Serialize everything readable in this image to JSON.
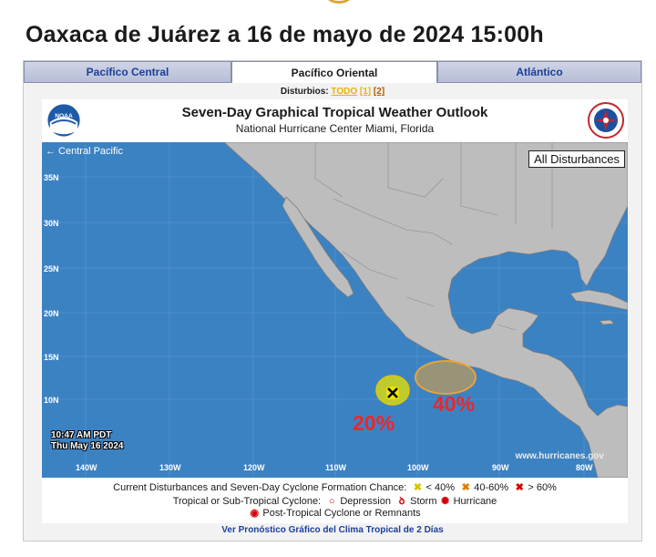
{
  "headline": "Oaxaca de Juárez a  16 de mayo de 2024  15:00h",
  "tabs": [
    {
      "label": "Pacífico Central",
      "active": false
    },
    {
      "label": "Pacífico Oriental",
      "active": true
    },
    {
      "label": "Atlántico",
      "active": false
    }
  ],
  "subnav": {
    "prefix": "Disturbios:",
    "all": "TODO",
    "d1": "[1]",
    "d2": "[2]"
  },
  "product": {
    "title": "Seven-Day Graphical Tropical Weather Outlook",
    "subtitle": "National Hurricane Center  Miami, Florida",
    "left_logo": "noaa-logo",
    "right_logo": "nws-logo"
  },
  "map": {
    "central_pacific_link": "← Central Pacific",
    "all_disturbances_label": "All Disturbances",
    "lat_labels": [
      "35N",
      "30N",
      "25N",
      "20N",
      "15N",
      "10N"
    ],
    "lon_labels": [
      "140W",
      "130W",
      "120W",
      "110W",
      "100W",
      "90W",
      "80W"
    ],
    "issued_time": "10:47 AM PDT",
    "issued_date": "Thu May 16 2024",
    "credit": "www.hurricanes.gov",
    "area1_chance": "20%",
    "area2_chance": "40%",
    "colors": {
      "ocean": "#3b82c3",
      "land": "#bdbdbd",
      "low": "#e9e300",
      "medium": "#e8a33a",
      "annotation": "#e8282b"
    }
  },
  "legend": {
    "row1_label": "Current Disturbances and Seven-Day Cyclone Formation Chance:",
    "low": "< 40%",
    "mid": "40-60%",
    "high": "> 60%",
    "row2_label": "Tropical or Sub-Tropical Cyclone:",
    "depression": "Depression",
    "storm": "Storm",
    "hurricane": "Hurricane",
    "row3_label": "Post-Tropical Cyclone or Remnants"
  },
  "footer_link": "Ver Pronóstico Gráfico del Clima Tropical de 2 Días"
}
